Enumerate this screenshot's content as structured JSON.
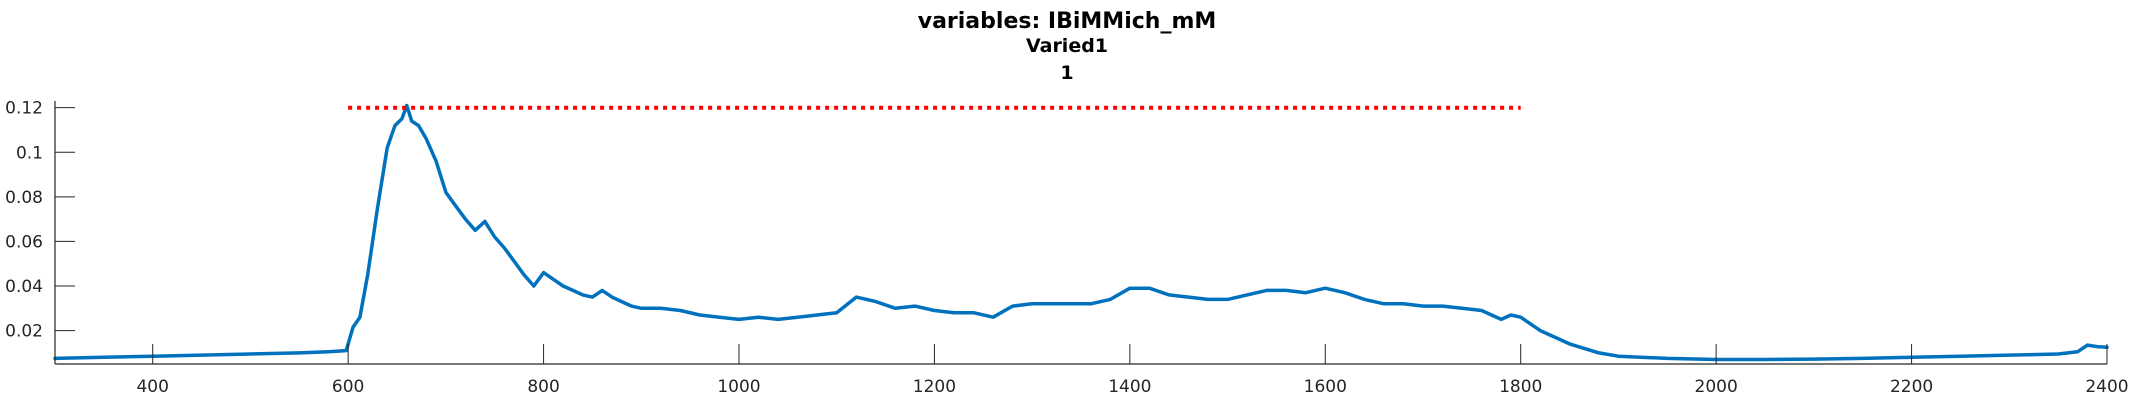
{
  "chart_data": {
    "type": "line",
    "title_lines": [
      "variables: IBiMMich_mM",
      "Varied1",
      "1"
    ],
    "xlabel": "",
    "ylabel": "",
    "xlim": [
      300,
      2400
    ],
    "ylim": [
      0.005,
      0.123
    ],
    "x_ticks": [
      400,
      600,
      800,
      1000,
      1200,
      1400,
      1600,
      1800,
      2000,
      2200,
      2400
    ],
    "y_ticks": [
      0.02,
      0.04,
      0.06,
      0.08,
      0.1,
      0.12
    ],
    "x_tick_labels": [
      "400",
      "600",
      "800",
      "1000",
      "1200",
      "1400",
      "1600",
      "1800",
      "2000",
      "2200",
      "2400"
    ],
    "y_tick_labels": [
      "0.02",
      "0.04",
      "0.06",
      "0.08",
      "0.1",
      "0.12"
    ],
    "grid": false,
    "series": [
      {
        "color": "#0072bd",
        "x": [
          300,
          350,
          400,
          450,
          500,
          550,
          580,
          598,
          605,
          612,
          620,
          630,
          640,
          648,
          655,
          660,
          665,
          672,
          680,
          690,
          700,
          710,
          720,
          730,
          740,
          750,
          760,
          770,
          780,
          790,
          800,
          810,
          820,
          830,
          840,
          850,
          860,
          870,
          880,
          890,
          900,
          920,
          940,
          960,
          980,
          1000,
          1020,
          1040,
          1060,
          1080,
          1100,
          1120,
          1140,
          1160,
          1180,
          1200,
          1220,
          1240,
          1260,
          1280,
          1300,
          1320,
          1340,
          1360,
          1380,
          1400,
          1420,
          1440,
          1460,
          1480,
          1500,
          1520,
          1540,
          1560,
          1580,
          1600,
          1620,
          1640,
          1660,
          1680,
          1700,
          1720,
          1740,
          1760,
          1780,
          1790,
          1800,
          1820,
          1850,
          1880,
          1900,
          1950,
          2000,
          2050,
          2100,
          2150,
          2200,
          2250,
          2300,
          2350,
          2370,
          2380,
          2390,
          2400
        ],
        "y": [
          0.0075,
          0.008,
          0.0085,
          0.009,
          0.0095,
          0.01,
          0.0105,
          0.011,
          0.0215,
          0.026,
          0.045,
          0.075,
          0.102,
          0.112,
          0.115,
          0.121,
          0.114,
          0.112,
          0.106,
          0.096,
          0.082,
          0.076,
          0.07,
          0.065,
          0.069,
          0.062,
          0.057,
          0.051,
          0.045,
          0.04,
          0.046,
          0.043,
          0.04,
          0.038,
          0.036,
          0.035,
          0.038,
          0.035,
          0.033,
          0.031,
          0.03,
          0.03,
          0.029,
          0.027,
          0.026,
          0.025,
          0.026,
          0.025,
          0.026,
          0.027,
          0.028,
          0.035,
          0.033,
          0.03,
          0.031,
          0.029,
          0.028,
          0.028,
          0.026,
          0.031,
          0.032,
          0.032,
          0.032,
          0.032,
          0.034,
          0.039,
          0.039,
          0.036,
          0.035,
          0.034,
          0.034,
          0.036,
          0.038,
          0.038,
          0.037,
          0.039,
          0.037,
          0.034,
          0.032,
          0.032,
          0.031,
          0.031,
          0.03,
          0.029,
          0.025,
          0.027,
          0.026,
          0.02,
          0.014,
          0.01,
          0.0085,
          0.0075,
          0.007,
          0.007,
          0.0072,
          0.0075,
          0.008,
          0.0085,
          0.009,
          0.0095,
          0.0105,
          0.0135,
          0.0128,
          0.0125
        ]
      },
      {
        "color": "#ff0000",
        "style": "dotted",
        "x": [
          600,
          1800
        ],
        "y": [
          0.12,
          0.12
        ]
      }
    ]
  }
}
